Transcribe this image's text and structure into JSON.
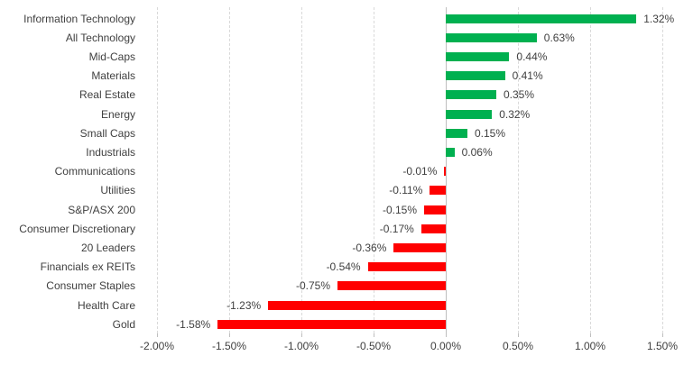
{
  "chart_data": {
    "type": "bar",
    "orientation": "horizontal",
    "title": "",
    "xlabel": "",
    "ylabel": "",
    "legend": "none",
    "grid": "vertical-dashed",
    "xlim": [
      -2.0,
      1.5
    ],
    "x_tick_step": 0.5,
    "categories": [
      "Information Technology",
      "All Technology",
      "Mid-Caps",
      "Materials",
      "Real Estate",
      "Energy",
      "Small Caps",
      "Industrials",
      "Communications",
      "Utilities",
      "S&P/ASX 200",
      "Consumer Discretionary",
      "20 Leaders",
      "Financials ex REITs",
      "Consumer Staples",
      "Health Care",
      "Gold"
    ],
    "values": [
      1.32,
      0.63,
      0.44,
      0.41,
      0.35,
      0.32,
      0.15,
      0.06,
      -0.01,
      -0.11,
      -0.15,
      -0.17,
      -0.36,
      -0.54,
      -0.75,
      -1.23,
      -1.58
    ],
    "value_labels": [
      "1.32%",
      "0.63%",
      "0.44%",
      "0.41%",
      "0.35%",
      "0.32%",
      "0.15%",
      "0.06%",
      "-0.01%",
      "-0.11%",
      "-0.15%",
      "-0.17%",
      "-0.36%",
      "-0.54%",
      "-0.75%",
      "-1.23%",
      "-1.58%"
    ],
    "x_ticks": [
      {
        "value": -2.0,
        "label": "-2.00%"
      },
      {
        "value": -1.5,
        "label": "-1.50%"
      },
      {
        "value": -1.0,
        "label": "-1.00%"
      },
      {
        "value": -0.5,
        "label": "-0.50%"
      },
      {
        "value": 0.0,
        "label": "0.00%"
      },
      {
        "value": 0.5,
        "label": "0.50%"
      },
      {
        "value": 1.0,
        "label": "1.00%"
      },
      {
        "value": 1.5,
        "label": "1.50%"
      }
    ],
    "colors": {
      "positive": "#00B050",
      "negative": "#FF0000",
      "gridline": "#D9D9D9",
      "axis_line": "#BFBFBF",
      "text": "#404040",
      "background": "#FFFFFF"
    }
  }
}
